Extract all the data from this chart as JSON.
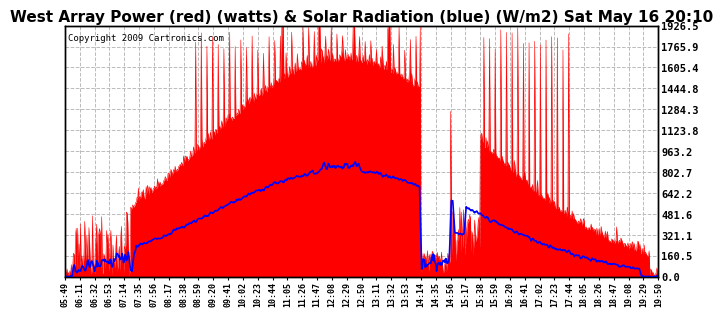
{
  "title": "West Array Power (red) (watts) & Solar Radiation (blue) (W/m2) Sat May 16 20:10",
  "copyright": "Copyright 2009 Cartronics.com",
  "ylabel_right_ticks": [
    0.0,
    160.5,
    321.1,
    481.6,
    642.2,
    802.7,
    963.2,
    1123.8,
    1284.3,
    1444.8,
    1605.4,
    1765.9,
    1926.5
  ],
  "ymax": 1926.5,
  "ymin": 0.0,
  "background_color": "#ffffff",
  "plot_bg_color": "#ffffff",
  "grid_color": "#bbbbbb",
  "red_color": "#ff0000",
  "blue_color": "#0000ff",
  "title_fontsize": 11,
  "x_tick_labels": [
    "05:49",
    "06:11",
    "06:32",
    "06:53",
    "07:14",
    "07:35",
    "07:56",
    "08:17",
    "08:38",
    "08:59",
    "09:20",
    "09:41",
    "10:02",
    "10:23",
    "10:44",
    "11:05",
    "11:26",
    "11:47",
    "12:08",
    "12:29",
    "12:50",
    "13:11",
    "13:32",
    "13:53",
    "14:14",
    "14:35",
    "14:56",
    "15:17",
    "15:38",
    "15:59",
    "16:20",
    "16:41",
    "17:02",
    "17:23",
    "17:44",
    "18:05",
    "18:26",
    "18:47",
    "19:08",
    "19:29",
    "19:50"
  ]
}
